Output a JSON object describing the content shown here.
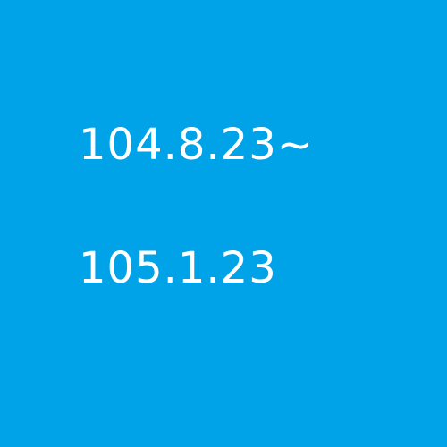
{
  "canvas": {
    "background_color": "#00a2e8",
    "text_color": "#ffffff"
  },
  "dates": {
    "start": "104.8.23~",
    "end": "105.1.23"
  }
}
